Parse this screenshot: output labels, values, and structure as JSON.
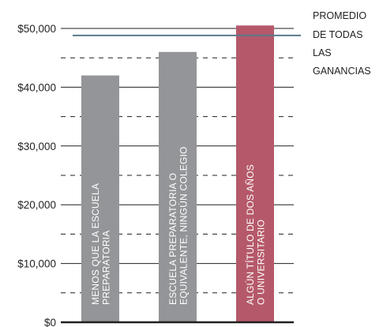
{
  "chart_data": {
    "type": "bar",
    "categories": [
      [
        "MENOS QUE LA ESCUELA",
        "PREPARATORIA"
      ],
      [
        "ESCUELA PREPARATORIA O",
        "EQUIVALENTE, NINGÚN COLEGIO"
      ],
      [
        "ALGÚN TÍTULO DE DOS AÑOS",
        "O UNIVERSITARIO"
      ]
    ],
    "values": [
      42000,
      46000,
      50500
    ],
    "bar_colors": [
      "#939598",
      "#939598",
      "#b5596a"
    ],
    "ylim": [
      0,
      50000
    ],
    "yticks": [
      0,
      10000,
      20000,
      30000,
      40000,
      50000
    ],
    "ytick_labels": [
      "$0",
      "$10,000",
      "$20,000",
      "$30,000",
      "$40,000",
      "$50,000"
    ],
    "minor_gridlines": [
      5000,
      15000,
      25000,
      35000,
      45000
    ],
    "reference_line": {
      "value": 48800,
      "label": [
        "PROMEDIO",
        "DE TODAS",
        "LAS",
        "GANANCIAS"
      ],
      "color": "#5a7a8c"
    },
    "title": "",
    "xlabel": "",
    "ylabel": "",
    "legend": "none"
  }
}
